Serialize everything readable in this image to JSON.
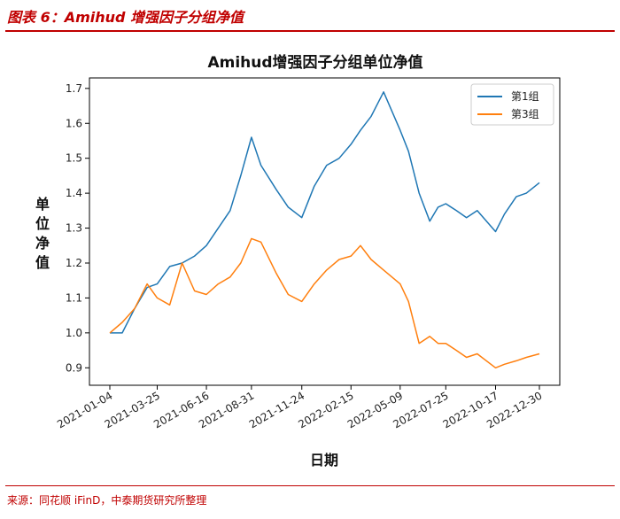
{
  "caption": "图表 6：Amihud 增强因子分组净值",
  "source": "来源：同花顺 iFinD，中泰期货研究所整理",
  "colors": {
    "caption": "#c00000",
    "series1": "#1f77b4",
    "series2": "#ff7f0e"
  },
  "chart_data": {
    "type": "line",
    "title": "Amihud增强因子分组单位净值",
    "xlabel": "日期",
    "ylabel": "单位净值",
    "ylim": [
      0.85,
      1.73
    ],
    "yticks": [
      "0.9",
      "1.0",
      "1.1",
      "1.2",
      "1.3",
      "1.4",
      "1.5",
      "1.6",
      "1.7"
    ],
    "xticks": [
      "2021-01-04",
      "2021-03-25",
      "2021-06-16",
      "2021-08-31",
      "2021-11-24",
      "2022-02-15",
      "2022-05-09",
      "2022-07-25",
      "2022-10-17",
      "2022-12-30"
    ],
    "legend_position": "top-right",
    "x": [
      "2021-01-04",
      "2021-01-25",
      "2021-02-15",
      "2021-03-08",
      "2021-03-25",
      "2021-04-15",
      "2021-05-06",
      "2021-05-27",
      "2021-06-16",
      "2021-07-06",
      "2021-07-26",
      "2021-08-13",
      "2021-08-31",
      "2021-09-16",
      "2021-10-12",
      "2021-11-01",
      "2021-11-24",
      "2021-12-15",
      "2022-01-05",
      "2022-01-26",
      "2022-02-15",
      "2022-03-03",
      "2022-03-21",
      "2022-04-11",
      "2022-05-09",
      "2022-05-23",
      "2022-06-10",
      "2022-06-28",
      "2022-07-12",
      "2022-07-25",
      "2022-08-12",
      "2022-08-29",
      "2022-09-16",
      "2022-10-17",
      "2022-11-01",
      "2022-11-21",
      "2022-12-08",
      "2022-12-30"
    ],
    "series": [
      {
        "name": "第1组",
        "values": [
          1.0,
          1.0,
          1.07,
          1.13,
          1.14,
          1.19,
          1.2,
          1.22,
          1.25,
          1.3,
          1.35,
          1.45,
          1.56,
          1.48,
          1.41,
          1.36,
          1.33,
          1.42,
          1.48,
          1.5,
          1.54,
          1.58,
          1.62,
          1.69,
          1.58,
          1.52,
          1.4,
          1.32,
          1.36,
          1.37,
          1.35,
          1.33,
          1.35,
          1.29,
          1.34,
          1.39,
          1.4,
          1.43
        ]
      },
      {
        "name": "第3组",
        "values": [
          1.0,
          1.03,
          1.07,
          1.14,
          1.1,
          1.08,
          1.2,
          1.12,
          1.11,
          1.14,
          1.16,
          1.2,
          1.27,
          1.26,
          1.17,
          1.11,
          1.09,
          1.14,
          1.18,
          1.21,
          1.22,
          1.25,
          1.21,
          1.18,
          1.14,
          1.09,
          0.97,
          0.99,
          0.97,
          0.97,
          0.95,
          0.93,
          0.94,
          0.9,
          0.91,
          0.92,
          0.93,
          0.94
        ]
      }
    ]
  }
}
